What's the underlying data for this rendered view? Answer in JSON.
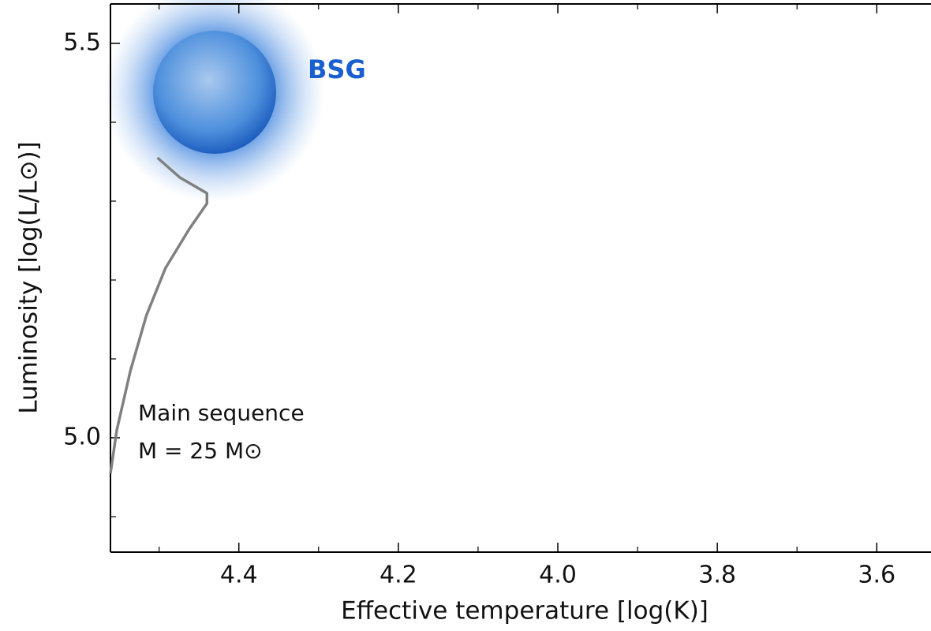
{
  "chart_data": {
    "type": "line",
    "xlabel": "Effective temperature [log(K)]",
    "ylabel": "Luminosity [log(L/L⊙)]",
    "xlim": [
      4.561,
      3.532
    ],
    "ylim": [
      4.855,
      5.55
    ],
    "xticks": [
      4.4,
      4.2,
      {
        "value": 4.0,
        "label": "4.0"
      },
      3.8,
      3.6
    ],
    "xminorticks": [
      4.5,
      4.3,
      4.1,
      3.9,
      3.7
    ],
    "yticks": [
      {
        "value": 5.0,
        "label": "5.0"
      },
      5.5
    ],
    "yminorticks": [
      4.9,
      5.1,
      5.2,
      5.3,
      5.4
    ],
    "series": [
      {
        "color": "#808080",
        "x": [
          4.561,
          4.553,
          4.536,
          4.516,
          4.492,
          4.462,
          4.44,
          4.44,
          4.457,
          4.474,
          4.502
        ],
        "values": [
          4.955,
          5.01,
          5.085,
          5.155,
          5.215,
          5.265,
          5.297,
          5.31,
          5.32,
          5.33,
          5.355
        ]
      }
    ],
    "annotations": [
      "BSG",
      "Main sequence",
      "M = 25 M⊙"
    ]
  }
}
